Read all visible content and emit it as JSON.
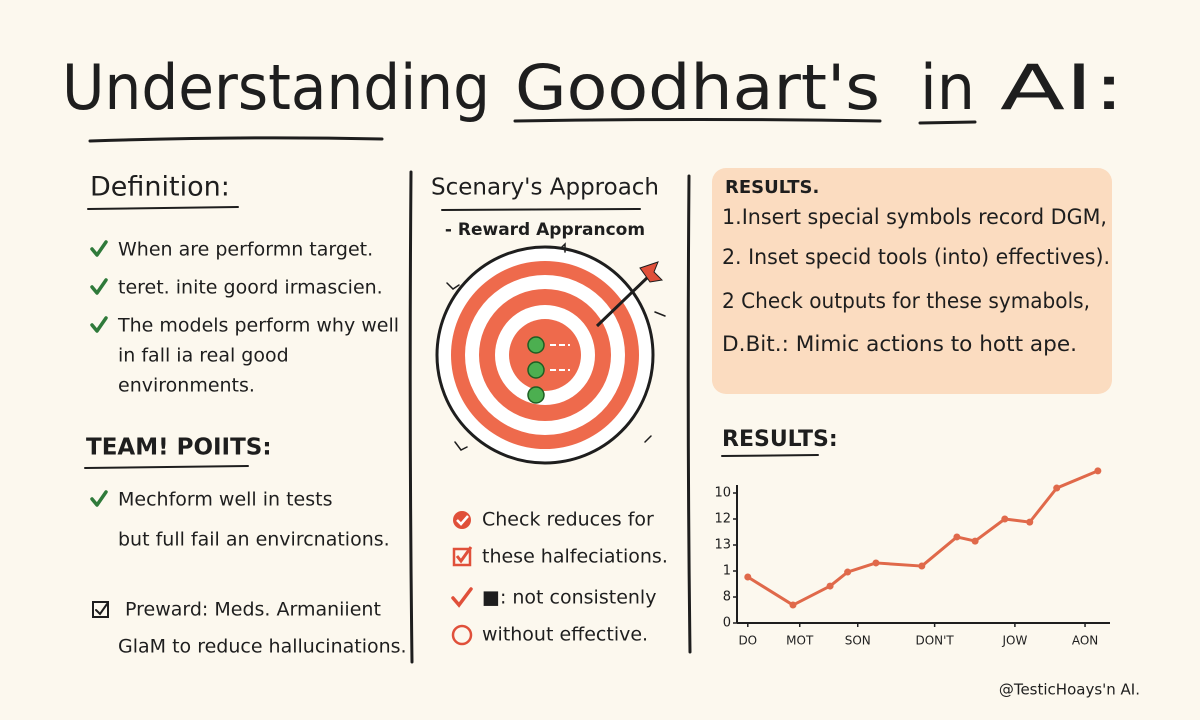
{
  "header": {
    "title": [
      "Understanding",
      "Goodhart's",
      "in",
      "AI:"
    ]
  },
  "definition": {
    "heading": "Definition:",
    "items": [
      [
        "When are performn target."
      ],
      [
        "teret. inite goord irmascien."
      ],
      [
        "The models perform why well",
        "in fall ia real good",
        "environments."
      ]
    ]
  },
  "key_points": {
    "heading": "TEAM! POIITS:",
    "items": [
      [
        "Mechform well in tests",
        "but full fail an envircnations."
      ]
    ],
    "note": [
      "Preward: Meds. Armaniient",
      "GlaM to reduce hallucinations."
    ]
  },
  "approach": {
    "heading": "Scenary's Approach",
    "subheading": "- Reward Apprancom",
    "checklist": [
      "Check reduces for",
      "these halfeciations.",
      "■: not consistenly",
      "without effective."
    ]
  },
  "results_box": {
    "heading": "RESULTS.",
    "lines": [
      "1.Insert special symbols record DGM,",
      "2. Inset specid tools (into) effectives).",
      "2 Check outputs for these symabols,",
      "D.Bit.: Mimic actions to hott ape."
    ]
  },
  "chart_data": {
    "type": "line",
    "title": "RESULTS:",
    "x": [
      0,
      0.67,
      1.22,
      1.48,
      1.9,
      2.58,
      3.1,
      3.37,
      3.81,
      4.18,
      4.58,
      5.19
    ],
    "values": [
      1.77,
      0.69,
      1.42,
      1.96,
      2.31,
      2.19,
      3.31,
      3.15,
      4.0,
      3.88,
      5.19,
      5.85
    ],
    "color": "#e0694a",
    "xlim": [
      -0.16,
      5.37
    ],
    "ylim": [
      0,
      6
    ],
    "xticks": [
      {
        "value": 0,
        "label": "DO"
      },
      {
        "value": 0.77,
        "label": "MOT"
      },
      {
        "value": 1.63,
        "label": "SON"
      },
      {
        "value": 2.77,
        "label": "DON'T"
      },
      {
        "value": 3.96,
        "label": "JOW"
      },
      {
        "value": 5,
        "label": "AON"
      }
    ],
    "yticks": [
      0,
      {
        "value": 1,
        "label": "8"
      },
      {
        "value": 2,
        "label": "1"
      },
      {
        "value": 3,
        "label": "13"
      },
      {
        "value": 4,
        "label": "12"
      },
      {
        "value": 5,
        "label": "10"
      }
    ]
  },
  "footer": {
    "credit": "@TesticHoays'n AI."
  }
}
